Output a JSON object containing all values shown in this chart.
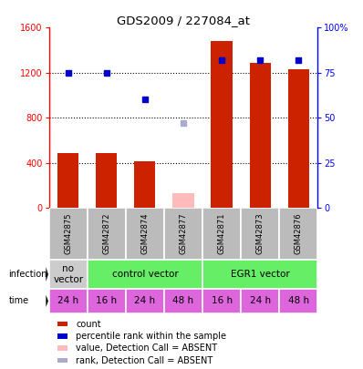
{
  "title": "GDS2009 / 227084_at",
  "samples": [
    "GSM42875",
    "GSM42872",
    "GSM42874",
    "GSM42877",
    "GSM42871",
    "GSM42873",
    "GSM42876"
  ],
  "bar_values": [
    490,
    490,
    415,
    130,
    1480,
    1290,
    1230
  ],
  "bar_colors": [
    "#cc2200",
    "#cc2200",
    "#cc2200",
    "#ffbbbb",
    "#cc2200",
    "#cc2200",
    "#cc2200"
  ],
  "rank_values": [
    75,
    75,
    60,
    47,
    82,
    82,
    82
  ],
  "rank_colors": [
    "#0000cc",
    "#0000cc",
    "#0000cc",
    "#aaaacc",
    "#0000cc",
    "#0000cc",
    "#0000cc"
  ],
  "ylim_left": [
    0,
    1600
  ],
  "ylim_right": [
    0,
    100
  ],
  "yticks_left": [
    0,
    400,
    800,
    1200,
    1600
  ],
  "yticks_right": [
    0,
    25,
    50,
    75,
    100
  ],
  "time_labels": [
    "24 h",
    "16 h",
    "24 h",
    "48 h",
    "16 h",
    "24 h",
    "48 h"
  ],
  "time_color": "#dd66dd",
  "bg_color": "#bbbbbb",
  "infection_data": [
    {
      "start": 0,
      "end": 1,
      "label": "no\nvector",
      "color": "#cccccc"
    },
    {
      "start": 1,
      "end": 4,
      "label": "control vector",
      "color": "#66ee66"
    },
    {
      "start": 4,
      "end": 7,
      "label": "EGR1 vector",
      "color": "#66ee66"
    }
  ],
  "legend_items": [
    {
      "color": "#cc2200",
      "label": "count"
    },
    {
      "color": "#0000cc",
      "label": "percentile rank within the sample"
    },
    {
      "color": "#ffbbbb",
      "label": "value, Detection Call = ABSENT"
    },
    {
      "color": "#aaaacc",
      "label": "rank, Detection Call = ABSENT"
    }
  ]
}
